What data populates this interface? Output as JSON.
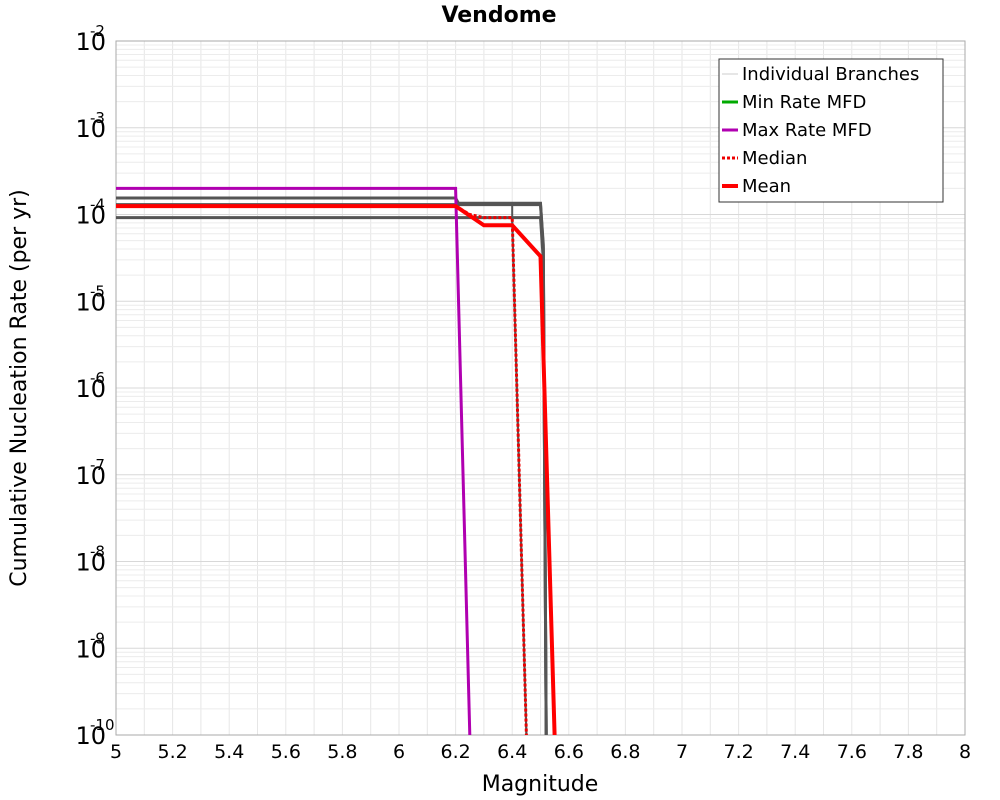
{
  "chart_data": {
    "type": "line",
    "title": "Vendome",
    "xlabel": "Magnitude",
    "ylabel": "Cumulative Nucleation Rate (per yr)",
    "xlim": [
      5,
      8
    ],
    "ylim_log10": [
      -10,
      -2
    ],
    "y_scale": "log",
    "grid": true,
    "legend_position": "top-right",
    "x_ticks": [
      5,
      5.2,
      5.4,
      5.6,
      5.8,
      6,
      6.2,
      6.4,
      6.6,
      6.8,
      7,
      7.2,
      7.4,
      7.6,
      7.8,
      8
    ],
    "x_tick_labels": [
      "5",
      "5.2",
      "5.4",
      "5.6",
      "5.8",
      "6",
      "6.2",
      "6.4",
      "6.6",
      "6.8",
      "7",
      "7.2",
      "7.4",
      "7.6",
      "7.8",
      "8"
    ],
    "y_tick_exponents": [
      -10,
      -9,
      -8,
      -7,
      -6,
      -5,
      -4,
      -3,
      -2
    ],
    "y_tick_base": "10",
    "y_tick_labels": [
      "-10",
      "-9",
      "-8",
      "-7",
      "-6",
      "-5",
      "-4",
      "-3",
      "-2"
    ],
    "series": [
      {
        "name": "Individual Branches",
        "color": "#555555",
        "width": 3,
        "dash": "",
        "in_legend": false,
        "points": [
          [
            5,
            0.00013
          ],
          [
            6.5,
            0.00013
          ],
          [
            6.51,
            4.5e-05
          ],
          [
            6.52,
            1e-10
          ]
        ]
      },
      {
        "name": "Individual Branches",
        "color": "#555555",
        "width": 3,
        "dash": "",
        "in_legend": false,
        "points": [
          [
            5,
            9.2e-05
          ],
          [
            6.5,
            9.2e-05
          ],
          [
            6.51,
            3e-05
          ],
          [
            6.52,
            1e-10
          ]
        ]
      },
      {
        "name": "Individual Branches",
        "color": "#555555",
        "width": 2,
        "dash": "",
        "in_legend": false,
        "points": [
          [
            6.2,
            9.2e-05
          ],
          [
            6.4,
            9.2e-05
          ],
          [
            6.45,
            1e-10
          ]
        ]
      },
      {
        "name": "Individual Branches",
        "color": "#555555",
        "width": 2,
        "dash": "",
        "in_legend": false,
        "points": [
          [
            6.4,
            0.00013
          ],
          [
            6.4,
            8e-05
          ],
          [
            6.45,
            1e-10
          ]
        ]
      },
      {
        "name": "Individual Branches",
        "color": "#555555",
        "width": 3,
        "dash": "",
        "in_legend": false,
        "points": [
          [
            5,
            0.000155
          ],
          [
            6.2,
            0.000155
          ],
          [
            6.21,
            0.000135
          ],
          [
            6.5,
            0.000135
          ],
          [
            6.51,
            4e-05
          ],
          [
            6.52,
            1e-10
          ]
        ]
      },
      {
        "name": "Max Rate MFD",
        "color": "#b000b0",
        "width": 3,
        "dash": "",
        "in_legend": true,
        "points": [
          [
            5,
            0.0002
          ],
          [
            6.2,
            0.0002
          ],
          [
            6.25,
            1e-10
          ]
        ]
      },
      {
        "name": "Median",
        "color": "#ee0000",
        "width": 3,
        "dash": "3,2",
        "in_legend": true,
        "points": [
          [
            5,
            0.000125
          ],
          [
            6.2,
            0.000125
          ],
          [
            6.25,
            0.0001
          ],
          [
            6.3,
            9.2e-05
          ],
          [
            6.4,
            9.2e-05
          ],
          [
            6.45,
            1e-10
          ]
        ]
      },
      {
        "name": "Mean",
        "color": "#ff0000",
        "width": 4,
        "dash": "",
        "in_legend": true,
        "points": [
          [
            5,
            0.000125
          ],
          [
            6.2,
            0.000125
          ],
          [
            6.3,
            7.5e-05
          ],
          [
            6.4,
            7.5e-05
          ],
          [
            6.5,
            3.3e-05
          ],
          [
            6.55,
            1e-10
          ]
        ]
      }
    ],
    "legend": [
      {
        "label": "Individual Branches",
        "color": "#cccccc",
        "width": 1,
        "dash": ""
      },
      {
        "label": "Min Rate MFD",
        "color": "#00aa00",
        "width": 3,
        "dash": ""
      },
      {
        "label": "Max Rate MFD",
        "color": "#b000b0",
        "width": 3,
        "dash": ""
      },
      {
        "label": "Median",
        "color": "#ee0000",
        "width": 3,
        "dash": "3,2"
      },
      {
        "label": "Mean",
        "color": "#ff0000",
        "width": 4,
        "dash": ""
      }
    ]
  }
}
